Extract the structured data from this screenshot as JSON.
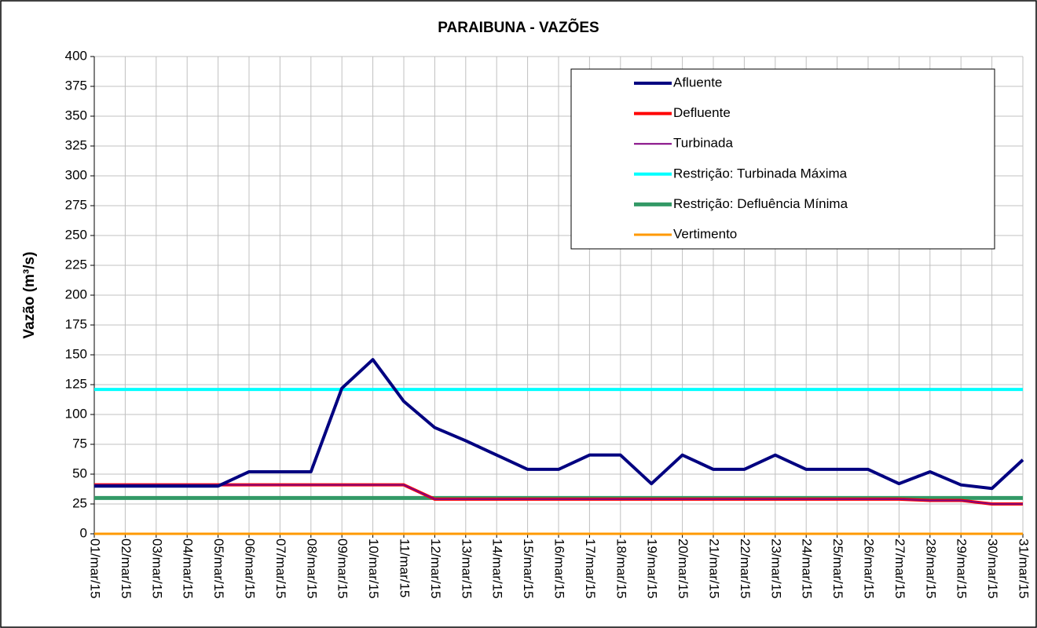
{
  "chart_data": {
    "type": "line",
    "title": "PARAIBUNA - VAZÕES",
    "y_label": "Vazão (m³/s)",
    "x": [
      "01/mar/15",
      "02/mar/15",
      "03/mar/15",
      "04/mar/15",
      "05/mar/15",
      "06/mar/15",
      "07/mar/15",
      "08/mar/15",
      "09/mar/15",
      "10/mar/15",
      "11/mar/15",
      "12/mar/15",
      "13/mar/15",
      "14/mar/15",
      "15/mar/15",
      "16/mar/15",
      "17/mar/15",
      "18/mar/15",
      "19/mar/15",
      "20/mar/15",
      "21/mar/15",
      "22/mar/15",
      "23/mar/15",
      "24/mar/15",
      "25/mar/15",
      "26/mar/15",
      "27/mar/15",
      "28/mar/15",
      "29/mar/15",
      "30/mar/15",
      "31/mar/15"
    ],
    "series": [
      {
        "name": "Afluente",
        "color": "#000080",
        "values": [
          40,
          40,
          40,
          40,
          40,
          52,
          52,
          52,
          122,
          146,
          111,
          89,
          78,
          66,
          54,
          54,
          66,
          66,
          42,
          66,
          54,
          54,
          66,
          54,
          54,
          54,
          42,
          52,
          41,
          38,
          62
        ]
      },
      {
        "name": "Defluente",
        "color": "#ff0000",
        "values": [
          41,
          41,
          41,
          41,
          41,
          41,
          41,
          41,
          41,
          41,
          41,
          29,
          29,
          29,
          29,
          29,
          29,
          29,
          29,
          29,
          29,
          29,
          29,
          29,
          29,
          29,
          29,
          28,
          28,
          25,
          25
        ]
      },
      {
        "name": "Turbinada",
        "color": "#800080",
        "values": [
          41,
          41,
          41,
          41,
          41,
          41,
          41,
          41,
          41,
          41,
          41,
          29,
          29,
          29,
          29,
          29,
          29,
          29,
          29,
          29,
          29,
          29,
          29,
          29,
          29,
          29,
          29,
          28,
          28,
          25,
          25
        ]
      },
      {
        "name": "Restrição: Turbinada Máxima",
        "color": "#00ffff",
        "values": [
          121,
          121,
          121,
          121,
          121,
          121,
          121,
          121,
          121,
          121,
          121,
          121,
          121,
          121,
          121,
          121,
          121,
          121,
          121,
          121,
          121,
          121,
          121,
          121,
          121,
          121,
          121,
          121,
          121,
          121,
          121
        ]
      },
      {
        "name": "Restrição: Defluência Mínima",
        "color": "#339966",
        "values": [
          30,
          30,
          30,
          30,
          30,
          30,
          30,
          30,
          30,
          30,
          30,
          30,
          30,
          30,
          30,
          30,
          30,
          30,
          30,
          30,
          30,
          30,
          30,
          30,
          30,
          30,
          30,
          30,
          30,
          30,
          30
        ]
      },
      {
        "name": "Vertimento",
        "color": "#ff9900",
        "values": [
          0,
          0,
          0,
          0,
          0,
          0,
          0,
          0,
          0,
          0,
          0,
          0,
          0,
          0,
          0,
          0,
          0,
          0,
          0,
          0,
          0,
          0,
          0,
          0,
          0,
          0,
          0,
          0,
          0,
          0,
          0
        ]
      }
    ],
    "ylim": [
      0,
      400
    ],
    "yticks": [
      0,
      25,
      50,
      75,
      100,
      125,
      150,
      175,
      200,
      225,
      250,
      275,
      300,
      325,
      350,
      375,
      400
    ],
    "grid": true,
    "legend": "top-right"
  }
}
